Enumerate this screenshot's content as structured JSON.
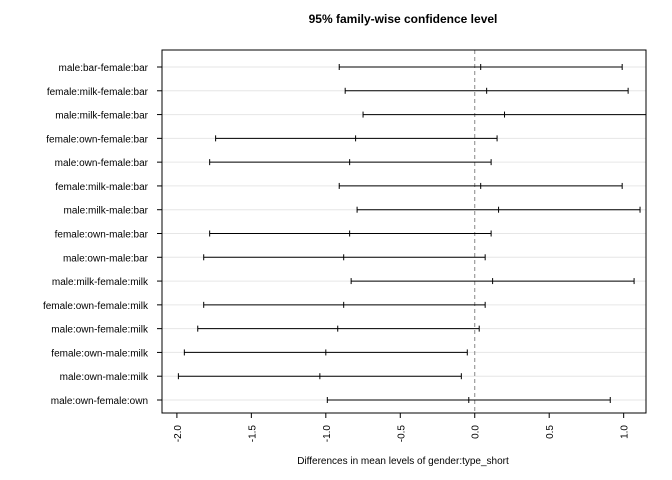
{
  "chart_data": {
    "type": "errorbar",
    "title": "95% family-wise confidence level",
    "xlabel": "Differences in mean levels of gender:type_short",
    "ylabel": "",
    "xlim": [
      -2.1,
      1.15
    ],
    "x_ticks": [
      -2.0,
      -1.5,
      -1.0,
      -0.5,
      0.0,
      0.5,
      1.0
    ],
    "x_tick_labels": [
      "-2.0",
      "-1.5",
      "-1.0",
      "-0.5",
      "0.0",
      "0.5",
      "1.0"
    ],
    "reference_line": 0,
    "grid": "horizontal",
    "comparisons": [
      {
        "label": "male:bar-female:bar",
        "lower": -0.91,
        "estimate": 0.04,
        "upper": 0.99
      },
      {
        "label": "female:milk-female:bar",
        "lower": -0.87,
        "estimate": 0.08,
        "upper": 1.03
      },
      {
        "label": "male:milk-female:bar",
        "lower": -0.75,
        "estimate": 0.2,
        "upper": 1.15
      },
      {
        "label": "female:own-female:bar",
        "lower": -1.74,
        "estimate": -0.8,
        "upper": 0.15
      },
      {
        "label": "male:own-female:bar",
        "lower": -1.78,
        "estimate": -0.84,
        "upper": 0.11
      },
      {
        "label": "female:milk-male:bar",
        "lower": -0.91,
        "estimate": 0.04,
        "upper": 0.99
      },
      {
        "label": "male:milk-male:bar",
        "lower": -0.79,
        "estimate": 0.16,
        "upper": 1.11
      },
      {
        "label": "female:own-male:bar",
        "lower": -1.78,
        "estimate": -0.84,
        "upper": 0.11
      },
      {
        "label": "male:own-male:bar",
        "lower": -1.82,
        "estimate": -0.88,
        "upper": 0.07
      },
      {
        "label": "male:milk-female:milk",
        "lower": -0.83,
        "estimate": 0.12,
        "upper": 1.07
      },
      {
        "label": "female:own-female:milk",
        "lower": -1.82,
        "estimate": -0.88,
        "upper": 0.07
      },
      {
        "label": "male:own-female:milk",
        "lower": -1.86,
        "estimate": -0.92,
        "upper": 0.03
      },
      {
        "label": "female:own-male:milk",
        "lower": -1.95,
        "estimate": -1.0,
        "upper": -0.05
      },
      {
        "label": "male:own-male:milk",
        "lower": -1.99,
        "estimate": -1.04,
        "upper": -0.09
      },
      {
        "label": "male:own-female:own",
        "lower": -0.99,
        "estimate": -0.04,
        "upper": 0.91
      }
    ]
  }
}
